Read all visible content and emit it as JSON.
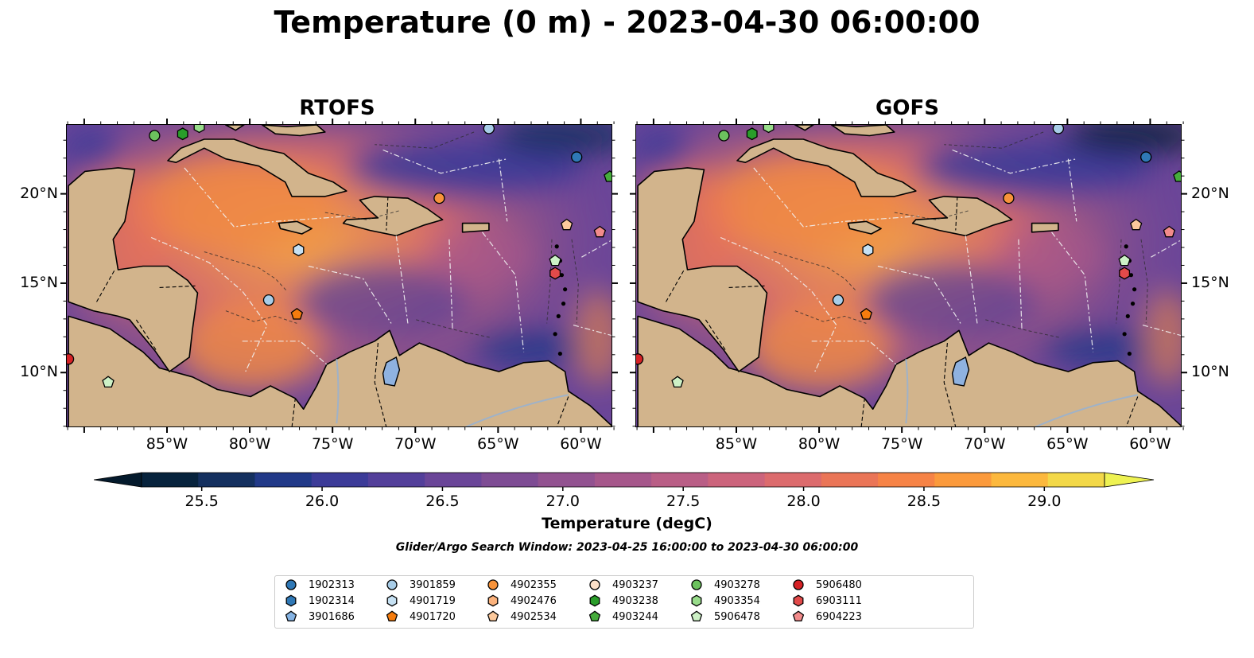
{
  "title": "Temperature (0 m) - 2023-04-30 06:00:00",
  "panels": [
    {
      "title": "RTOFS"
    },
    {
      "title": "GOFS"
    }
  ],
  "axes": {
    "lon_labels": [
      "85°W",
      "80°W",
      "75°W",
      "70°W",
      "65°W",
      "60°W"
    ],
    "lat_labels": [
      "20°N",
      "15°N",
      "10°N"
    ]
  },
  "colorbar": {
    "label": "Temperature (degC)",
    "ticks": [
      "25.5",
      "26.0",
      "26.5",
      "27.0",
      "27.5",
      "28.0",
      "28.5",
      "29.0"
    ],
    "range": [
      25.25,
      29.25
    ],
    "colors": [
      "#07233d",
      "#14305f",
      "#213988",
      "#3c3b98",
      "#533f9a",
      "#6a4598",
      "#7e4c94",
      "#925290",
      "#a6578b",
      "#b95e86",
      "#cc647c",
      "#dc6b6d",
      "#ea7557",
      "#f68346",
      "#fb9a3c",
      "#fcb83d",
      "#f3d848"
    ],
    "under_color": "#041a2c",
    "over_color": "#eef252"
  },
  "search_window": "Glider/Argo Search Window: 2023-04-25 16:00:00 to 2023-04-30 06:00:00",
  "legend": [
    {
      "id": "1902313",
      "shape": "circle",
      "color": "#2f78b6"
    },
    {
      "id": "1902314",
      "shape": "hexagon",
      "color": "#2f78b6"
    },
    {
      "id": "3901686",
      "shape": "pentagon",
      "color": "#85b3e3"
    },
    {
      "id": "3901859",
      "shape": "circle",
      "color": "#a8cde8"
    },
    {
      "id": "4901719",
      "shape": "hexagon",
      "color": "#c6e1f3"
    },
    {
      "id": "4901720",
      "shape": "pentagon",
      "color": "#f57c0e"
    },
    {
      "id": "4902355",
      "shape": "circle",
      "color": "#f8933a"
    },
    {
      "id": "4902476",
      "shape": "hexagon",
      "color": "#fbb27c"
    },
    {
      "id": "4902534",
      "shape": "pentagon",
      "color": "#fcc99c"
    },
    {
      "id": "4903237",
      "shape": "circle",
      "color": "#fde0c8"
    },
    {
      "id": "4903238",
      "shape": "hexagon",
      "color": "#2a9d2a"
    },
    {
      "id": "4903244",
      "shape": "pentagon",
      "color": "#46ac3c"
    },
    {
      "id": "4903278",
      "shape": "circle",
      "color": "#6cc25e"
    },
    {
      "id": "4903354",
      "shape": "hexagon",
      "color": "#98dc8a"
    },
    {
      "id": "5906478",
      "shape": "pentagon",
      "color": "#cdf1c6"
    },
    {
      "id": "5906480",
      "shape": "circle",
      "color": "#d62226"
    },
    {
      "id": "6903111",
      "shape": "hexagon",
      "color": "#e24a4a"
    },
    {
      "id": "6904223",
      "shape": "pentagon",
      "color": "#f28b8b"
    }
  ],
  "map_markers": [
    {
      "id": "4903278",
      "lon": -85.8,
      "lat": 23.3
    },
    {
      "id": "4903238",
      "lon": -84.1,
      "lat": 23.4
    },
    {
      "id": "4903354",
      "lon": -83.1,
      "lat": 23.8
    },
    {
      "id": "3901859",
      "lon": -65.6,
      "lat": 23.7
    },
    {
      "id": "1902313",
      "lon": -60.3,
      "lat": 22.1
    },
    {
      "id": "4903244",
      "lon": -58.3,
      "lat": 21.0
    },
    {
      "id": "4902355",
      "lon": -68.6,
      "lat": 19.8
    },
    {
      "id": "4902534",
      "lon": -60.9,
      "lat": 18.3
    },
    {
      "id": "6904223",
      "lon": -58.9,
      "lat": 17.9
    },
    {
      "id": "4901719",
      "lon": -77.1,
      "lat": 16.9
    },
    {
      "id": "5906478",
      "lon": -61.6,
      "lat": 16.3
    },
    {
      "id": "6903111",
      "lon": -61.6,
      "lat": 15.6
    },
    {
      "id": "3901859",
      "lon": -78.9,
      "lat": 14.1
    },
    {
      "id": "4901720",
      "lon": -77.2,
      "lat": 13.3
    },
    {
      "id": "5906480",
      "lon": -91.0,
      "lat": 10.8
    },
    {
      "id": "5906478",
      "lon": -88.6,
      "lat": 9.5
    }
  ]
}
